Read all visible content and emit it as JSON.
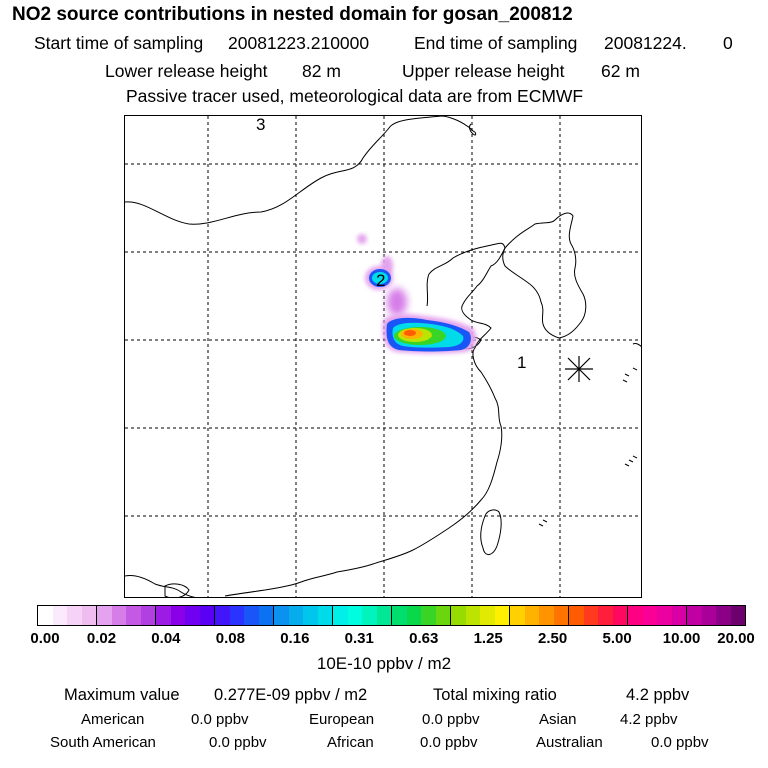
{
  "header": {
    "title": "NO2 source contributions in nested domain for gosan_200812",
    "start_label": "Start time of sampling",
    "start_value": "20081223.210000",
    "end_label": "End time of sampling",
    "end_value": "20081224.",
    "end_suffix": "0",
    "lower_label": "Lower release height",
    "lower_value": "82 m",
    "upper_label": "Upper release height",
    "upper_value": "62 m",
    "tracer_note": "Passive tracer used, meteorological data are from ECMWF"
  },
  "map": {
    "markers": [
      {
        "id": "marker-1",
        "label": "1"
      },
      {
        "id": "marker-2",
        "label": "2"
      },
      {
        "id": "marker-3",
        "label": "3"
      }
    ],
    "receptor_symbol": "*"
  },
  "colorbar": {
    "tick_labels": [
      "0.00",
      "0.02",
      "0.04",
      "0.08",
      "0.16",
      "0.31",
      "0.63",
      "1.25",
      "2.50",
      "5.00",
      "10.00",
      "20.00"
    ],
    "colors": [
      "#ffffff",
      "#fbeafb",
      "#f6d3f6",
      "#efbdf0",
      "#e4a3ee",
      "#d67de8",
      "#c45ae4",
      "#b13fe2",
      "#9c1be5",
      "#8a00e8",
      "#7100f0",
      "#5a00f5",
      "#4215fa",
      "#2a33ff",
      "#1a55f8",
      "#0b72f2",
      "#0b92f0",
      "#07acec",
      "#00c5ec",
      "#00dbea",
      "#00efe8",
      "#00fde0",
      "#00f4bd",
      "#00e796",
      "#00de6e",
      "#08d84a",
      "#38d527",
      "#6ad60e",
      "#96dc00",
      "#bde400",
      "#e1ea00",
      "#fff000",
      "#ffd100",
      "#ffb200",
      "#ff9400",
      "#ff7400",
      "#ff5b00",
      "#ff3a1e",
      "#ff1e3c",
      "#ff0860",
      "#ff0082",
      "#fa0097",
      "#ec00a0",
      "#d800a4",
      "#c100a4",
      "#a80098",
      "#8b0087",
      "#6c006c"
    ],
    "unit": "10E-10 ppbv / m2"
  },
  "stats": {
    "max_label": "Maximum value",
    "max_value": "0.277E-09 ppbv / m2",
    "total_label": "Total mixing ratio",
    "total_value": "4.2 ppbv",
    "regions": [
      {
        "name": "American",
        "value": "0.0 ppbv"
      },
      {
        "name": "European",
        "value": "0.0 ppbv"
      },
      {
        "name": "Asian",
        "value": "4.2 ppbv"
      },
      {
        "name": "South American",
        "value": "0.0 ppbv"
      },
      {
        "name": "African",
        "value": "0.0 ppbv"
      },
      {
        "name": "Australian",
        "value": "0.0 ppbv"
      }
    ]
  }
}
